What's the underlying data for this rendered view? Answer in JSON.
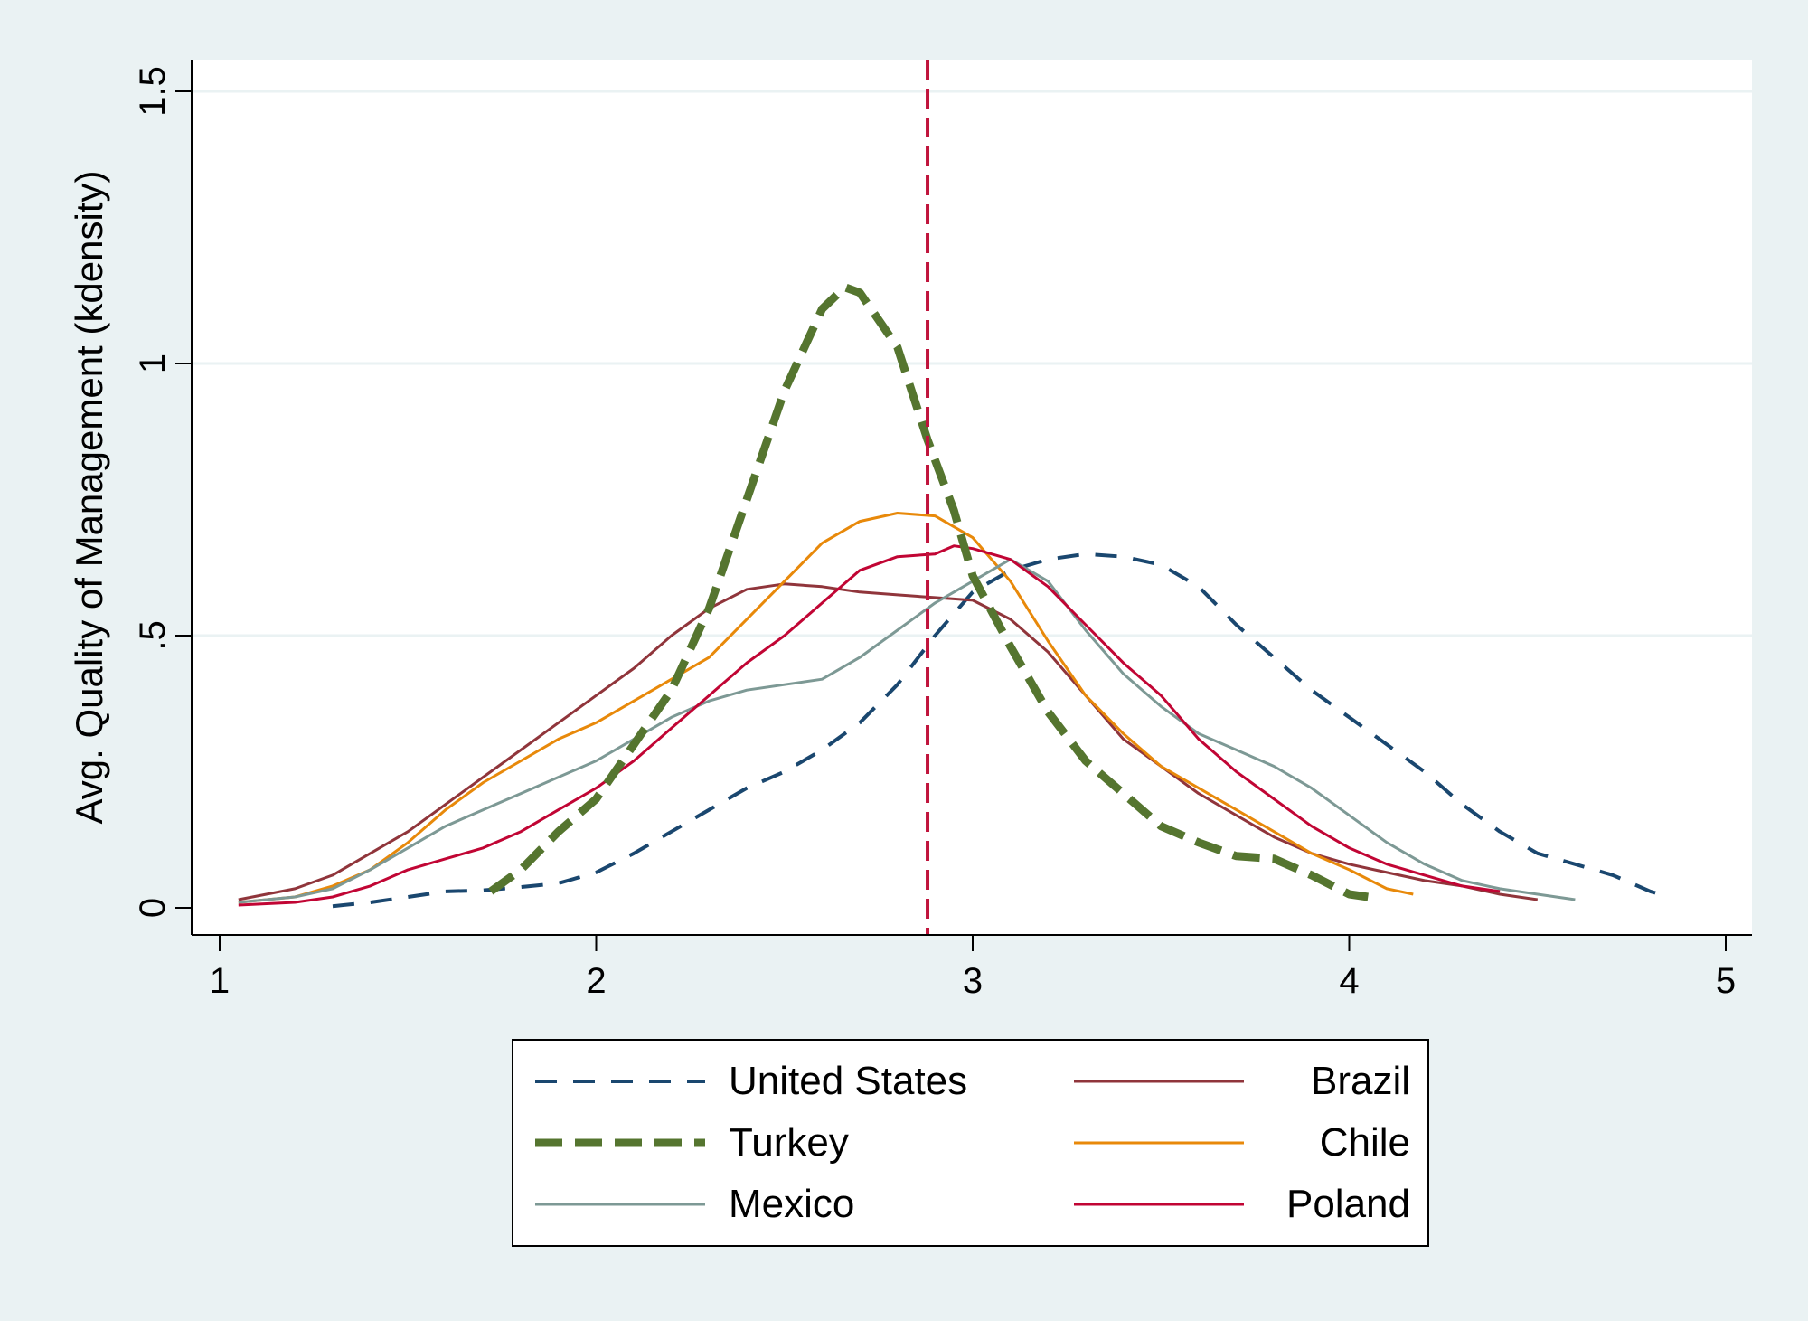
{
  "chart_data": {
    "type": "line",
    "title": "",
    "xlabel": "",
    "ylabel": "Avg. Quality of Management (kdensity)",
    "xlim": [
      1,
      5
    ],
    "ylim": [
      0,
      1.5
    ],
    "x_ticks": [
      {
        "value": 1,
        "label": "1"
      },
      {
        "value": 2,
        "label": "2"
      },
      {
        "value": 3,
        "label": "3"
      },
      {
        "value": 4,
        "label": "4"
      },
      {
        "value": 5,
        "label": "5"
      }
    ],
    "y_ticks": [
      {
        "value": 0,
        "label": "0"
      },
      {
        "value": 0.5,
        "label": ".5"
      },
      {
        "value": 1,
        "label": "1"
      },
      {
        "value": 1.5,
        "label": "1.5"
      }
    ],
    "grid": true,
    "legend_position": "bottom",
    "reference_line": {
      "axis": "x",
      "value": 2.88,
      "color": "#c0143c",
      "style": "dashed"
    },
    "colors": {
      "background_outer": "#eaf2f3",
      "plot_background": "#ffffff",
      "gridline": "#eaf2f3"
    },
    "series": [
      {
        "name": "United States",
        "color": "#1a476f",
        "style": "dash",
        "width": 4,
        "points": [
          [
            1.3,
            0.003
          ],
          [
            1.4,
            0.01
          ],
          [
            1.5,
            0.02
          ],
          [
            1.6,
            0.03
          ],
          [
            1.7,
            0.032
          ],
          [
            1.8,
            0.038
          ],
          [
            1.9,
            0.045
          ],
          [
            2.0,
            0.065
          ],
          [
            2.1,
            0.1
          ],
          [
            2.2,
            0.14
          ],
          [
            2.3,
            0.18
          ],
          [
            2.4,
            0.22
          ],
          [
            2.5,
            0.25
          ],
          [
            2.6,
            0.29
          ],
          [
            2.7,
            0.34
          ],
          [
            2.8,
            0.41
          ],
          [
            2.9,
            0.5
          ],
          [
            3.0,
            0.58
          ],
          [
            3.1,
            0.62
          ],
          [
            3.2,
            0.64
          ],
          [
            3.3,
            0.65
          ],
          [
            3.4,
            0.645
          ],
          [
            3.5,
            0.63
          ],
          [
            3.6,
            0.59
          ],
          [
            3.7,
            0.52
          ],
          [
            3.8,
            0.46
          ],
          [
            3.9,
            0.4
          ],
          [
            4.0,
            0.35
          ],
          [
            4.1,
            0.3
          ],
          [
            4.2,
            0.25
          ],
          [
            4.3,
            0.19
          ],
          [
            4.4,
            0.14
          ],
          [
            4.5,
            0.1
          ],
          [
            4.6,
            0.08
          ],
          [
            4.7,
            0.06
          ],
          [
            4.8,
            0.03
          ],
          [
            4.85,
            0.02
          ]
        ]
      },
      {
        "name": "Brazil",
        "color": "#90353b",
        "style": "solid",
        "width": 3,
        "points": [
          [
            1.05,
            0.015
          ],
          [
            1.2,
            0.035
          ],
          [
            1.3,
            0.06
          ],
          [
            1.4,
            0.1
          ],
          [
            1.5,
            0.14
          ],
          [
            1.6,
            0.19
          ],
          [
            1.7,
            0.24
          ],
          [
            1.8,
            0.29
          ],
          [
            1.9,
            0.34
          ],
          [
            2.0,
            0.39
          ],
          [
            2.1,
            0.44
          ],
          [
            2.2,
            0.5
          ],
          [
            2.3,
            0.55
          ],
          [
            2.4,
            0.585
          ],
          [
            2.5,
            0.595
          ],
          [
            2.6,
            0.59
          ],
          [
            2.7,
            0.58
          ],
          [
            2.8,
            0.575
          ],
          [
            2.9,
            0.57
          ],
          [
            3.0,
            0.565
          ],
          [
            3.1,
            0.53
          ],
          [
            3.2,
            0.47
          ],
          [
            3.3,
            0.39
          ],
          [
            3.4,
            0.31
          ],
          [
            3.5,
            0.26
          ],
          [
            3.6,
            0.21
          ],
          [
            3.7,
            0.17
          ],
          [
            3.8,
            0.13
          ],
          [
            3.9,
            0.1
          ],
          [
            4.0,
            0.08
          ],
          [
            4.1,
            0.065
          ],
          [
            4.2,
            0.05
          ],
          [
            4.3,
            0.04
          ],
          [
            4.4,
            0.025
          ],
          [
            4.5,
            0.015
          ]
        ]
      },
      {
        "name": "Chile",
        "color": "#e8890a",
        "style": "solid",
        "width": 3,
        "points": [
          [
            1.05,
            0.01
          ],
          [
            1.2,
            0.02
          ],
          [
            1.3,
            0.04
          ],
          [
            1.4,
            0.07
          ],
          [
            1.5,
            0.12
          ],
          [
            1.6,
            0.18
          ],
          [
            1.7,
            0.23
          ],
          [
            1.8,
            0.27
          ],
          [
            1.9,
            0.31
          ],
          [
            2.0,
            0.34
          ],
          [
            2.1,
            0.38
          ],
          [
            2.2,
            0.42
          ],
          [
            2.3,
            0.46
          ],
          [
            2.4,
            0.53
          ],
          [
            2.5,
            0.6
          ],
          [
            2.6,
            0.67
          ],
          [
            2.7,
            0.71
          ],
          [
            2.8,
            0.725
          ],
          [
            2.9,
            0.72
          ],
          [
            3.0,
            0.68
          ],
          [
            3.1,
            0.6
          ],
          [
            3.2,
            0.49
          ],
          [
            3.3,
            0.39
          ],
          [
            3.4,
            0.32
          ],
          [
            3.5,
            0.26
          ],
          [
            3.6,
            0.22
          ],
          [
            3.7,
            0.18
          ],
          [
            3.8,
            0.14
          ],
          [
            3.9,
            0.1
          ],
          [
            4.0,
            0.07
          ],
          [
            4.1,
            0.035
          ],
          [
            4.17,
            0.025
          ]
        ]
      },
      {
        "name": "Mexico",
        "color": "#7d9995",
        "style": "solid",
        "width": 3,
        "points": [
          [
            1.05,
            0.01
          ],
          [
            1.2,
            0.02
          ],
          [
            1.3,
            0.035
          ],
          [
            1.4,
            0.07
          ],
          [
            1.5,
            0.11
          ],
          [
            1.6,
            0.15
          ],
          [
            1.7,
            0.18
          ],
          [
            1.8,
            0.21
          ],
          [
            1.9,
            0.24
          ],
          [
            2.0,
            0.27
          ],
          [
            2.1,
            0.31
          ],
          [
            2.2,
            0.35
          ],
          [
            2.3,
            0.38
          ],
          [
            2.4,
            0.4
          ],
          [
            2.5,
            0.41
          ],
          [
            2.6,
            0.42
          ],
          [
            2.7,
            0.46
          ],
          [
            2.8,
            0.51
          ],
          [
            2.9,
            0.56
          ],
          [
            3.0,
            0.6
          ],
          [
            3.1,
            0.64
          ],
          [
            3.2,
            0.6
          ],
          [
            3.3,
            0.51
          ],
          [
            3.4,
            0.43
          ],
          [
            3.5,
            0.37
          ],
          [
            3.6,
            0.32
          ],
          [
            3.7,
            0.29
          ],
          [
            3.8,
            0.26
          ],
          [
            3.9,
            0.22
          ],
          [
            4.0,
            0.17
          ],
          [
            4.1,
            0.12
          ],
          [
            4.2,
            0.08
          ],
          [
            4.3,
            0.05
          ],
          [
            4.4,
            0.035
          ],
          [
            4.5,
            0.025
          ],
          [
            4.6,
            0.015
          ]
        ]
      },
      {
        "name": "Poland",
        "color": "#c10534",
        "style": "solid",
        "width": 3,
        "points": [
          [
            1.05,
            0.005
          ],
          [
            1.2,
            0.01
          ],
          [
            1.3,
            0.02
          ],
          [
            1.4,
            0.04
          ],
          [
            1.5,
            0.07
          ],
          [
            1.6,
            0.09
          ],
          [
            1.7,
            0.11
          ],
          [
            1.8,
            0.14
          ],
          [
            1.9,
            0.18
          ],
          [
            2.0,
            0.22
          ],
          [
            2.1,
            0.27
          ],
          [
            2.2,
            0.33
          ],
          [
            2.3,
            0.39
          ],
          [
            2.4,
            0.45
          ],
          [
            2.5,
            0.5
          ],
          [
            2.6,
            0.56
          ],
          [
            2.7,
            0.62
          ],
          [
            2.8,
            0.645
          ],
          [
            2.9,
            0.65
          ],
          [
            2.95,
            0.665
          ],
          [
            3.0,
            0.66
          ],
          [
            3.1,
            0.64
          ],
          [
            3.2,
            0.59
          ],
          [
            3.3,
            0.52
          ],
          [
            3.4,
            0.45
          ],
          [
            3.5,
            0.39
          ],
          [
            3.6,
            0.31
          ],
          [
            3.7,
            0.25
          ],
          [
            3.8,
            0.2
          ],
          [
            3.9,
            0.15
          ],
          [
            4.0,
            0.11
          ],
          [
            4.1,
            0.08
          ],
          [
            4.2,
            0.06
          ],
          [
            4.3,
            0.04
          ],
          [
            4.4,
            0.03
          ]
        ]
      },
      {
        "name": "Turkey",
        "color": "#55752f",
        "style": "dash",
        "width": 9,
        "points": [
          [
            1.72,
            0.03
          ],
          [
            1.8,
            0.07
          ],
          [
            1.9,
            0.14
          ],
          [
            2.0,
            0.2
          ],
          [
            2.1,
            0.3
          ],
          [
            2.2,
            0.4
          ],
          [
            2.3,
            0.55
          ],
          [
            2.4,
            0.75
          ],
          [
            2.5,
            0.95
          ],
          [
            2.6,
            1.1
          ],
          [
            2.66,
            1.14
          ],
          [
            2.7,
            1.13
          ],
          [
            2.8,
            1.03
          ],
          [
            2.88,
            0.86
          ],
          [
            2.95,
            0.73
          ],
          [
            3.0,
            0.61
          ],
          [
            3.1,
            0.48
          ],
          [
            3.2,
            0.36
          ],
          [
            3.3,
            0.27
          ],
          [
            3.4,
            0.21
          ],
          [
            3.5,
            0.15
          ],
          [
            3.6,
            0.12
          ],
          [
            3.7,
            0.095
          ],
          [
            3.8,
            0.09
          ],
          [
            3.9,
            0.06
          ],
          [
            4.0,
            0.025
          ],
          [
            4.05,
            0.02
          ]
        ]
      }
    ]
  },
  "legend": {
    "left": [
      {
        "name": "United States",
        "color": "#1a476f",
        "style": "dash",
        "width": 4
      },
      {
        "name": "Turkey",
        "color": "#55752f",
        "style": "dash",
        "width": 9
      },
      {
        "name": "Mexico",
        "color": "#7d9995",
        "style": "solid",
        "width": 3
      }
    ],
    "right": [
      {
        "name": "Brazil",
        "color": "#90353b",
        "style": "solid",
        "width": 3
      },
      {
        "name": "Chile",
        "color": "#e8890a",
        "style": "solid",
        "width": 3
      },
      {
        "name": "Poland",
        "color": "#c10534",
        "style": "solid",
        "width": 3
      }
    ]
  }
}
